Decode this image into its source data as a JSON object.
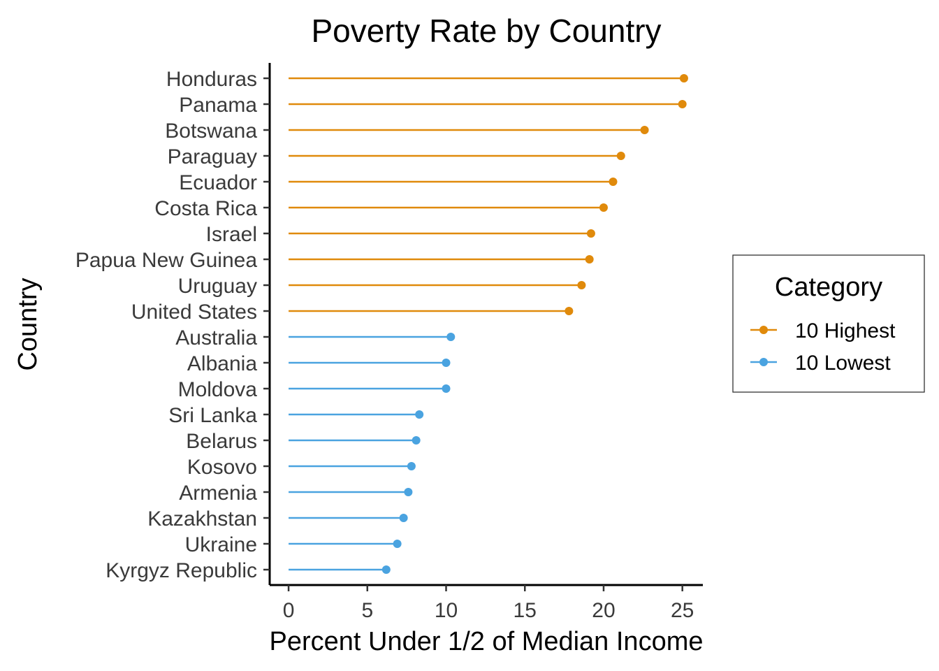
{
  "chart_data": {
    "type": "lollipop",
    "title": "Poverty Rate by Country",
    "xlabel": "Percent Under 1/2 of Median Income",
    "ylabel": "Country",
    "xlim": [
      -1.2,
      26.3
    ],
    "xticks": [
      0,
      5,
      10,
      15,
      20,
      25
    ],
    "xtick_labels": [
      "0",
      "5",
      "10",
      "15",
      "20",
      "25"
    ],
    "grid": false,
    "legend": {
      "title": "Category",
      "position": "right",
      "entries": [
        {
          "label": "10 Highest",
          "color": "#E08A0B"
        },
        {
          "label": "10 Lowest",
          "color": "#4AA3E0"
        }
      ]
    },
    "points": [
      {
        "country": "Honduras",
        "value": 25.1,
        "category": "10 Highest"
      },
      {
        "country": "Panama",
        "value": 25.0,
        "category": "10 Highest"
      },
      {
        "country": "Botswana",
        "value": 22.6,
        "category": "10 Highest"
      },
      {
        "country": "Paraguay",
        "value": 21.1,
        "category": "10 Highest"
      },
      {
        "country": "Ecuador",
        "value": 20.6,
        "category": "10 Highest"
      },
      {
        "country": "Costa Rica",
        "value": 20.0,
        "category": "10 Highest"
      },
      {
        "country": "Israel",
        "value": 19.2,
        "category": "10 Highest"
      },
      {
        "country": "Papua New Guinea",
        "value": 19.1,
        "category": "10 Highest"
      },
      {
        "country": "Uruguay",
        "value": 18.6,
        "category": "10 Highest"
      },
      {
        "country": "United States",
        "value": 17.8,
        "category": "10 Highest"
      },
      {
        "country": "Australia",
        "value": 10.3,
        "category": "10 Lowest"
      },
      {
        "country": "Albania",
        "value": 10.0,
        "category": "10 Lowest"
      },
      {
        "country": "Moldova",
        "value": 10.0,
        "category": "10 Lowest"
      },
      {
        "country": "Sri Lanka",
        "value": 8.3,
        "category": "10 Lowest"
      },
      {
        "country": "Belarus",
        "value": 8.1,
        "category": "10 Lowest"
      },
      {
        "country": "Kosovo",
        "value": 7.8,
        "category": "10 Lowest"
      },
      {
        "country": "Armenia",
        "value": 7.6,
        "category": "10 Lowest"
      },
      {
        "country": "Kazakhstan",
        "value": 7.3,
        "category": "10 Lowest"
      },
      {
        "country": "Ukraine",
        "value": 6.9,
        "category": "10 Lowest"
      },
      {
        "country": "Kyrgyz Republic",
        "value": 6.2,
        "category": "10 Lowest"
      }
    ]
  }
}
